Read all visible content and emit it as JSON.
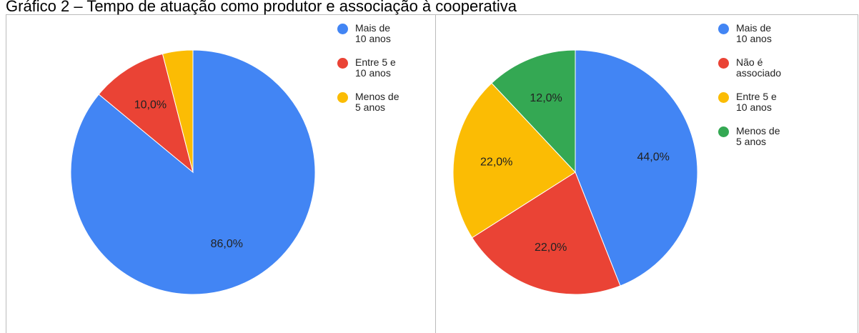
{
  "title": "Gráfico 2 – Tempo de atuação como produtor e associação à cooperativa",
  "chart_data": [
    {
      "type": "pie",
      "categories": [
        "Mais de 10 anos",
        "Entre 5 e 10 anos",
        "Menos de 5 anos"
      ],
      "values": [
        86,
        10,
        4
      ],
      "value_labels": [
        "86,0%",
        "10,0%",
        null
      ],
      "colors": [
        "#4285f4",
        "#ea4335",
        "#fbbc04"
      ]
    },
    {
      "type": "pie",
      "categories": [
        "Mais de 10 anos",
        "Não é associado",
        "Entre 5 e 10 anos",
        "Menos de 5 anos"
      ],
      "values": [
        44,
        22,
        22,
        12
      ],
      "value_labels": [
        "44,0%",
        "22,0%",
        "22,0%",
        "12,0%"
      ],
      "colors": [
        "#4285f4",
        "#ea4335",
        "#fbbc04",
        "#34a853"
      ]
    }
  ]
}
